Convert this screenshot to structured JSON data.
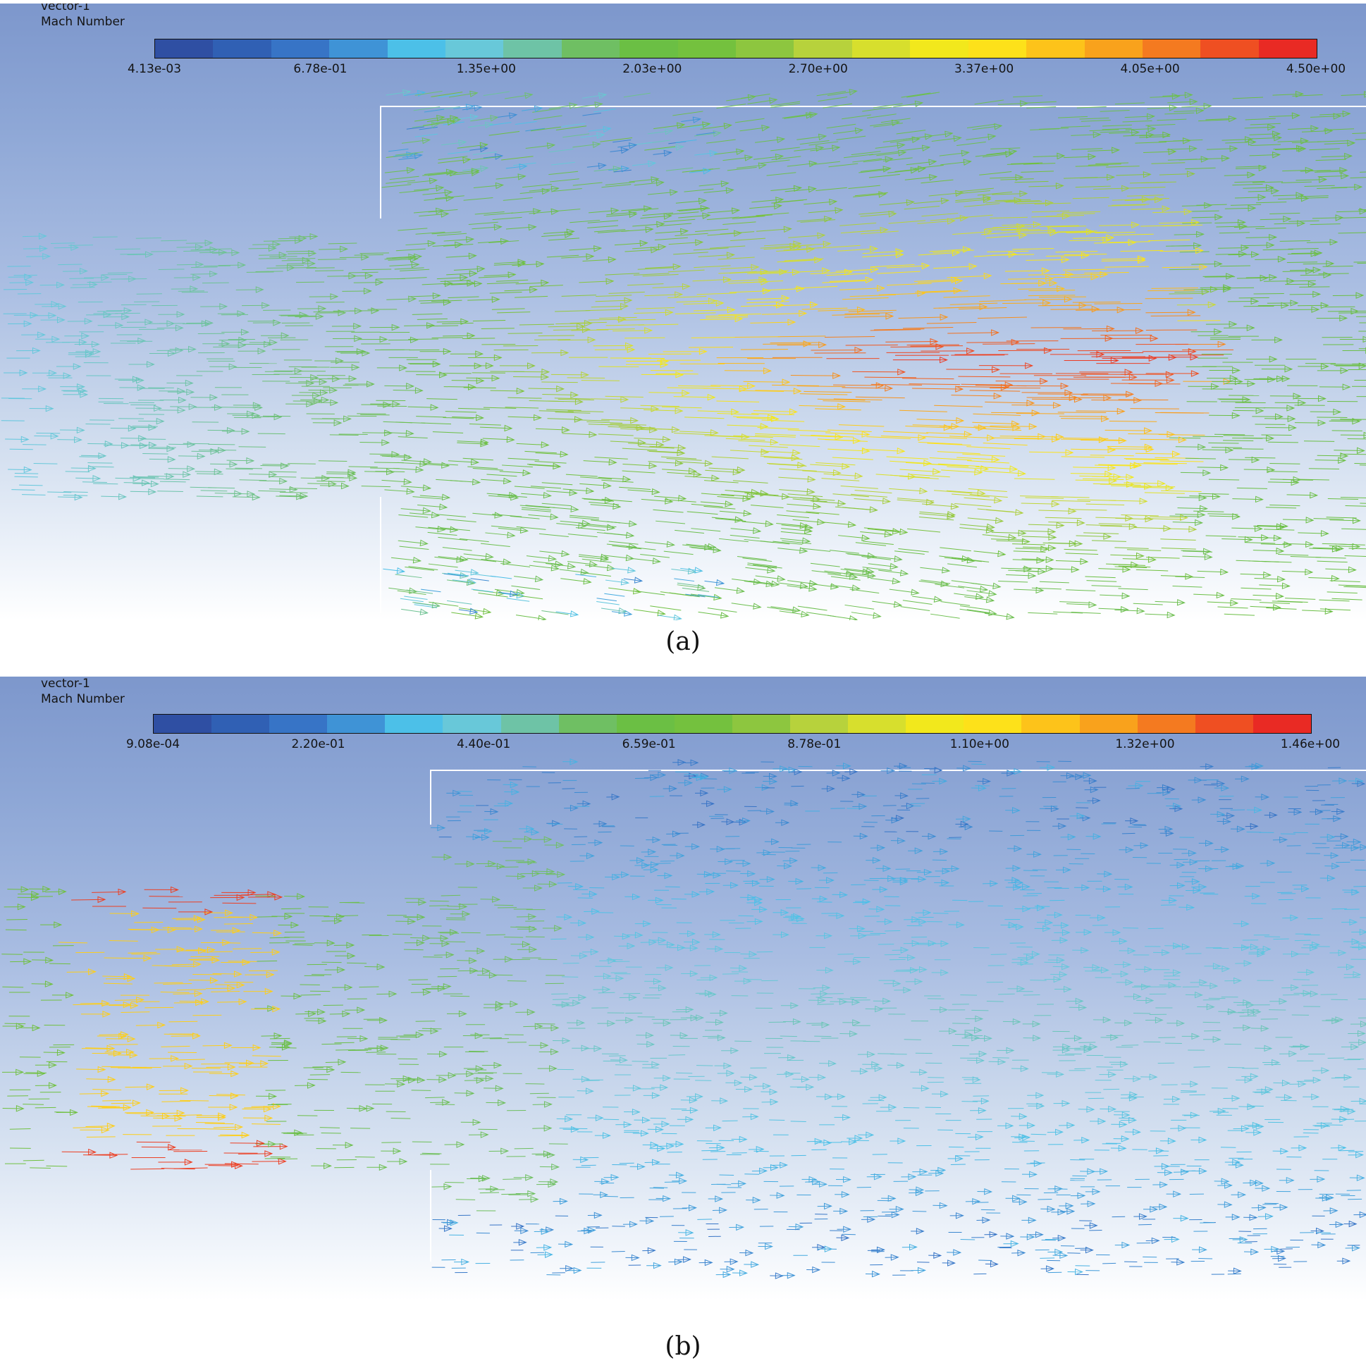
{
  "panel_a": {
    "legend_title": "vector-1",
    "legend_quantity": "Mach Number",
    "colorbar_colors": [
      "#2f4fa3",
      "#3060b4",
      "#3774c6",
      "#3f93d6",
      "#4cc0e8",
      "#68c8d9",
      "#6ec3a6",
      "#6fbf63",
      "#6bbf44",
      "#74c13e",
      "#8dc63f",
      "#b7d23c",
      "#d7df2d",
      "#f2e81c",
      "#fde11a",
      "#fdc31a",
      "#f9a21c",
      "#f47a20",
      "#ef4f22",
      "#e92a24"
    ],
    "tick_labels": [
      "4.13e-03",
      "6.78e-01",
      "1.35e+00",
      "2.03e+00",
      "2.70e+00",
      "3.37e+00",
      "4.05e+00",
      "4.50e+00"
    ],
    "caption": "(a)"
  },
  "panel_b": {
    "legend_title": "vector-1",
    "legend_quantity": "Mach Number",
    "colorbar_colors": [
      "#2f4fa3",
      "#3060b4",
      "#3774c6",
      "#3f93d6",
      "#4cc0e8",
      "#68c8d9",
      "#6ec3a6",
      "#6fbf63",
      "#6bbf44",
      "#74c13e",
      "#8dc63f",
      "#b7d23c",
      "#d7df2d",
      "#f2e81c",
      "#fde11a",
      "#fdc31a",
      "#f9a21c",
      "#f47a20",
      "#ef4f22",
      "#e92a24"
    ],
    "tick_labels": [
      "9.08e-04",
      "2.20e-01",
      "4.40e-01",
      "6.59e-01",
      "8.78e-01",
      "1.10e+00",
      "1.32e+00",
      "1.46e+00"
    ],
    "caption": "(b)"
  }
}
